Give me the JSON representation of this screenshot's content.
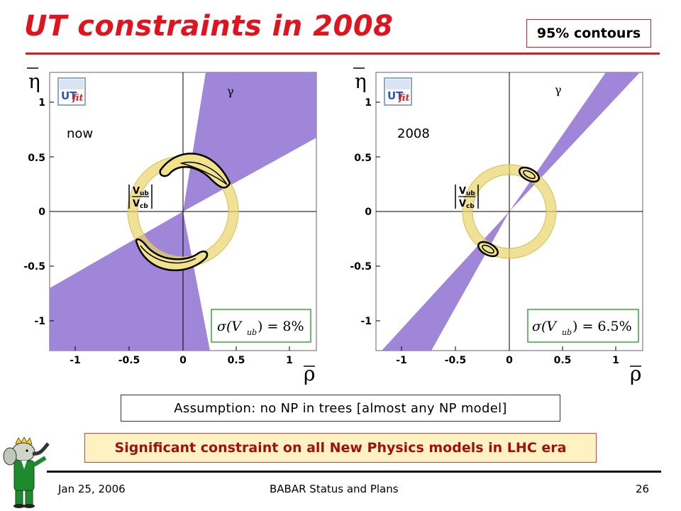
{
  "slide": {
    "title": "UT constraints in 2008",
    "contours_label": "95% contours",
    "assumption": "Assumption: no NP in trees [almost any NP model]",
    "significance": "Significant constraint on all New Physics models in LHC era",
    "footer": {
      "date": "Jan 25, 2006",
      "center": "BABAR Status and Plans",
      "page": "26"
    }
  },
  "plots": [
    {
      "panel_label": "now",
      "logo_text": "UTfit",
      "gamma_label": "γ",
      "vub_top": "V",
      "vub_top_sub": "ub",
      "vub_bottom": "V",
      "vub_bottom_sub": "cb",
      "sigma_prefix": "σ(V",
      "sigma_sub": "ub",
      "sigma_value": ") = 8%",
      "y_axis_label": "η",
      "x_axis_label": "ρ",
      "x_ticks": [
        "-1",
        "-0.5",
        "0",
        "0.5",
        "1"
      ],
      "y_ticks": [
        "1",
        "0.5",
        "0",
        "-0.5",
        "-1"
      ]
    },
    {
      "panel_label": "2008",
      "logo_text": "UTfit",
      "gamma_label": "γ",
      "vub_top": "V",
      "vub_top_sub": "ub",
      "vub_bottom": "V",
      "vub_bottom_sub": "cb",
      "sigma_prefix": "σ(V",
      "sigma_sub": "ub",
      "sigma_value": ") = 6.5%",
      "y_axis_label": "η",
      "x_axis_label": "ρ",
      "x_ticks": [
        "-1",
        "-0.5",
        "0",
        "0.5",
        "1"
      ],
      "y_ticks": [
        "1",
        "0.5",
        "0",
        "-0.5",
        "-1"
      ]
    }
  ],
  "colors": {
    "title": "#e0141e",
    "band": "#9a80d6",
    "ring": "#f2e28a",
    "sigma_border": "#3aa63a"
  }
}
